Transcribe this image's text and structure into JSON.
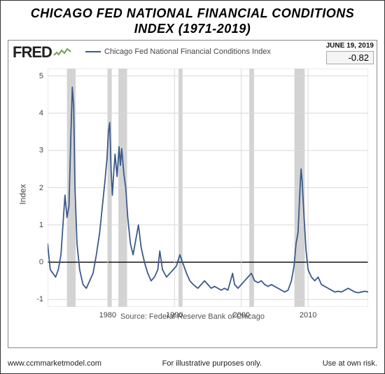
{
  "title": "CHICAGO FED NATIONAL FINANCIAL CONDITIONS INDEX (1971-2019)",
  "logo_text": "FRED",
  "legend_label": "Chicago Fed National Financial Conditions Index",
  "date_label": "JUNE 19, 2019",
  "current_value": "-0.82",
  "y_axis_label": "Index",
  "source_text": "Source: Federal Reserve Bank of Chicago",
  "footer_left": "www.ccmmarketmodel.com",
  "footer_center": "For illustrative purposes only.",
  "footer_right": "Use at own risk.",
  "chart": {
    "type": "line",
    "line_color": "#3b5a8a",
    "line_width": 1.8,
    "background_color": "#ffffff",
    "grid_color": "#d9d9d9",
    "zero_line_color": "#000000",
    "recession_color": "#d3d3d3",
    "axis_color": "#888888",
    "x_min": 1971,
    "x_max": 2019,
    "x_ticks": [
      1980,
      1990,
      2000,
      2010
    ],
    "y_min": -1.2,
    "y_max": 5.2,
    "y_ticks": [
      -1,
      0,
      1,
      2,
      3,
      4,
      5
    ],
    "recessions": [
      [
        1973.9,
        1975.2
      ],
      [
        1980.0,
        1980.6
      ],
      [
        1981.6,
        1982.9
      ],
      [
        1990.6,
        1991.2
      ],
      [
        2001.2,
        2001.9
      ],
      [
        2007.95,
        2009.5
      ]
    ],
    "series": [
      [
        1971.0,
        0.5
      ],
      [
        1971.4,
        -0.2
      ],
      [
        1971.8,
        -0.3
      ],
      [
        1972.2,
        -0.4
      ],
      [
        1972.6,
        -0.2
      ],
      [
        1973.0,
        0.2
      ],
      [
        1973.3,
        1.0
      ],
      [
        1973.6,
        1.8
      ],
      [
        1973.9,
        1.2
      ],
      [
        1974.2,
        1.5
      ],
      [
        1974.5,
        3.5
      ],
      [
        1974.7,
        4.7
      ],
      [
        1974.9,
        4.2
      ],
      [
        1975.1,
        2.0
      ],
      [
        1975.4,
        0.5
      ],
      [
        1975.8,
        -0.2
      ],
      [
        1976.3,
        -0.6
      ],
      [
        1976.8,
        -0.7
      ],
      [
        1977.3,
        -0.5
      ],
      [
        1977.8,
        -0.3
      ],
      [
        1978.3,
        0.2
      ],
      [
        1978.8,
        0.8
      ],
      [
        1979.2,
        1.5
      ],
      [
        1979.6,
        2.2
      ],
      [
        1979.9,
        2.8
      ],
      [
        1980.1,
        3.5
      ],
      [
        1980.3,
        3.75
      ],
      [
        1980.5,
        2.5
      ],
      [
        1980.7,
        1.8
      ],
      [
        1980.9,
        2.4
      ],
      [
        1981.1,
        2.9
      ],
      [
        1981.4,
        2.3
      ],
      [
        1981.7,
        3.1
      ],
      [
        1981.9,
        2.6
      ],
      [
        1982.1,
        3.05
      ],
      [
        1982.4,
        2.4
      ],
      [
        1982.7,
        2.0
      ],
      [
        1983.0,
        1.2
      ],
      [
        1983.4,
        0.5
      ],
      [
        1983.8,
        0.2
      ],
      [
        1984.2,
        0.6
      ],
      [
        1984.6,
        1.0
      ],
      [
        1985.0,
        0.4
      ],
      [
        1985.5,
        0.0
      ],
      [
        1986.0,
        -0.3
      ],
      [
        1986.5,
        -0.5
      ],
      [
        1987.0,
        -0.4
      ],
      [
        1987.5,
        -0.2
      ],
      [
        1987.8,
        0.3
      ],
      [
        1988.2,
        -0.2
      ],
      [
        1988.8,
        -0.4
      ],
      [
        1989.3,
        -0.3
      ],
      [
        1989.8,
        -0.2
      ],
      [
        1990.3,
        -0.1
      ],
      [
        1990.8,
        0.2
      ],
      [
        1991.2,
        0.0
      ],
      [
        1991.8,
        -0.3
      ],
      [
        1992.3,
        -0.5
      ],
      [
        1992.8,
        -0.6
      ],
      [
        1993.5,
        -0.7
      ],
      [
        1994.0,
        -0.6
      ],
      [
        1994.5,
        -0.5
      ],
      [
        1995.0,
        -0.6
      ],
      [
        1995.5,
        -0.7
      ],
      [
        1996.0,
        -0.65
      ],
      [
        1996.5,
        -0.7
      ],
      [
        1997.0,
        -0.75
      ],
      [
        1997.5,
        -0.7
      ],
      [
        1998.0,
        -0.75
      ],
      [
        1998.7,
        -0.3
      ],
      [
        1999.0,
        -0.6
      ],
      [
        1999.5,
        -0.7
      ],
      [
        2000.0,
        -0.6
      ],
      [
        2000.5,
        -0.5
      ],
      [
        2001.0,
        -0.4
      ],
      [
        2001.5,
        -0.3
      ],
      [
        2002.0,
        -0.5
      ],
      [
        2002.5,
        -0.55
      ],
      [
        2003.0,
        -0.5
      ],
      [
        2003.5,
        -0.6
      ],
      [
        2004.0,
        -0.65
      ],
      [
        2004.5,
        -0.6
      ],
      [
        2005.0,
        -0.65
      ],
      [
        2005.5,
        -0.7
      ],
      [
        2006.0,
        -0.75
      ],
      [
        2006.5,
        -0.8
      ],
      [
        2007.0,
        -0.75
      ],
      [
        2007.5,
        -0.5
      ],
      [
        2007.9,
        -0.1
      ],
      [
        2008.2,
        0.5
      ],
      [
        2008.5,
        0.8
      ],
      [
        2008.8,
        2.0
      ],
      [
        2008.95,
        2.5
      ],
      [
        2009.1,
        2.2
      ],
      [
        2009.4,
        1.2
      ],
      [
        2009.7,
        0.3
      ],
      [
        2010.0,
        -0.2
      ],
      [
        2010.5,
        -0.4
      ],
      [
        2011.0,
        -0.5
      ],
      [
        2011.5,
        -0.4
      ],
      [
        2012.0,
        -0.6
      ],
      [
        2012.5,
        -0.65
      ],
      [
        2013.0,
        -0.7
      ],
      [
        2013.5,
        -0.75
      ],
      [
        2014.0,
        -0.8
      ],
      [
        2014.5,
        -0.78
      ],
      [
        2015.0,
        -0.8
      ],
      [
        2015.5,
        -0.75
      ],
      [
        2016.0,
        -0.7
      ],
      [
        2016.5,
        -0.75
      ],
      [
        2017.0,
        -0.8
      ],
      [
        2017.5,
        -0.82
      ],
      [
        2018.0,
        -0.8
      ],
      [
        2018.5,
        -0.78
      ],
      [
        2019.0,
        -0.8
      ],
      [
        2019.4,
        -0.82
      ]
    ]
  }
}
